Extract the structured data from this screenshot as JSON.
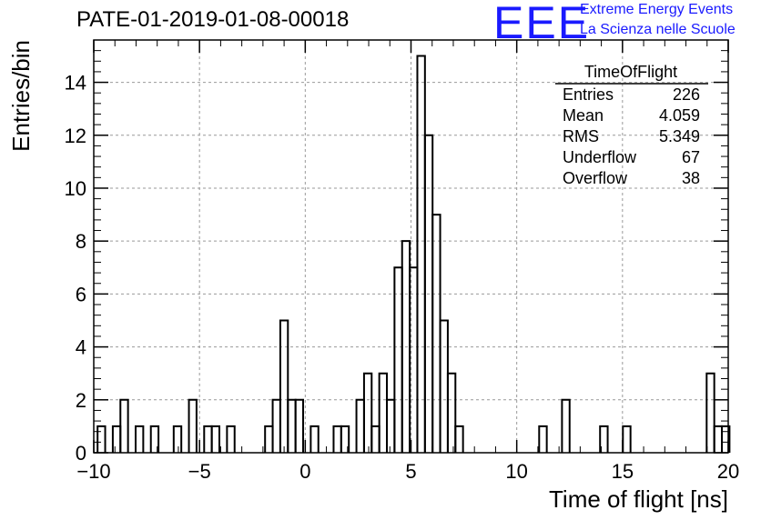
{
  "header": {
    "title": "PATE-01-2019-01-08-00018",
    "logo_text": "EEE",
    "logo_line1": "Extreme Energy Events",
    "logo_line2": "La Scienza nelle Scuole",
    "logo_color": "#1a1aff"
  },
  "stats_box": {
    "title": "TimeOfFlight",
    "rows": [
      {
        "label": "Entries",
        "value": "226"
      },
      {
        "label": "Mean",
        "value": "4.059"
      },
      {
        "label": "RMS",
        "value": "5.349"
      },
      {
        "label": "Underflow",
        "value": "67"
      },
      {
        "label": "Overflow",
        "value": "38"
      }
    ]
  },
  "chart_data": {
    "type": "bar",
    "histogram": true,
    "xlabel": "Time of flight [ns]",
    "ylabel": "Entries/bin",
    "xlim": [
      -10,
      20
    ],
    "ylim": [
      0,
      15.6
    ],
    "grid": true,
    "bin_width": 0.36,
    "x_ticks": [
      -10,
      -5,
      0,
      5,
      10,
      15,
      20
    ],
    "y_ticks": [
      0,
      2,
      4,
      6,
      8,
      10,
      12,
      14
    ],
    "bins": [
      {
        "x": -9.64,
        "y": 1
      },
      {
        "x": -9.28,
        "y": 0
      },
      {
        "x": -8.92,
        "y": 1
      },
      {
        "x": -8.56,
        "y": 2
      },
      {
        "x": -8.2,
        "y": 0
      },
      {
        "x": -7.84,
        "y": 1
      },
      {
        "x": -7.48,
        "y": 0
      },
      {
        "x": -7.12,
        "y": 1
      },
      {
        "x": -6.76,
        "y": 0
      },
      {
        "x": -6.4,
        "y": 0
      },
      {
        "x": -6.04,
        "y": 1
      },
      {
        "x": -5.68,
        "y": 0
      },
      {
        "x": -5.32,
        "y": 2
      },
      {
        "x": -4.96,
        "y": 0
      },
      {
        "x": -4.6,
        "y": 1
      },
      {
        "x": -4.24,
        "y": 1
      },
      {
        "x": -3.88,
        "y": 0
      },
      {
        "x": -3.52,
        "y": 1
      },
      {
        "x": -3.16,
        "y": 0
      },
      {
        "x": -2.8,
        "y": 0
      },
      {
        "x": -2.44,
        "y": 0
      },
      {
        "x": -2.08,
        "y": 0
      },
      {
        "x": -1.72,
        "y": 1
      },
      {
        "x": -1.36,
        "y": 2
      },
      {
        "x": -1.0,
        "y": 5
      },
      {
        "x": -0.64,
        "y": 2
      },
      {
        "x": -0.28,
        "y": 2
      },
      {
        "x": 0.08,
        "y": 0
      },
      {
        "x": 0.44,
        "y": 1
      },
      {
        "x": 0.8,
        "y": 0
      },
      {
        "x": 1.16,
        "y": 0
      },
      {
        "x": 1.52,
        "y": 1
      },
      {
        "x": 1.88,
        "y": 1
      },
      {
        "x": 2.24,
        "y": 0
      },
      {
        "x": 2.6,
        "y": 2
      },
      {
        "x": 2.96,
        "y": 3
      },
      {
        "x": 3.32,
        "y": 1
      },
      {
        "x": 3.68,
        "y": 3
      },
      {
        "x": 4.04,
        "y": 2
      },
      {
        "x": 4.4,
        "y": 7
      },
      {
        "x": 4.76,
        "y": 8
      },
      {
        "x": 5.12,
        "y": 7
      },
      {
        "x": 5.48,
        "y": 15
      },
      {
        "x": 5.84,
        "y": 12
      },
      {
        "x": 6.2,
        "y": 9
      },
      {
        "x": 6.56,
        "y": 5
      },
      {
        "x": 6.92,
        "y": 3
      },
      {
        "x": 7.28,
        "y": 1
      },
      {
        "x": 11.24,
        "y": 1
      },
      {
        "x": 12.32,
        "y": 2
      },
      {
        "x": 14.12,
        "y": 1
      },
      {
        "x": 15.2,
        "y": 1
      },
      {
        "x": 19.16,
        "y": 3
      },
      {
        "x": 19.52,
        "y": 1
      },
      {
        "x": 19.88,
        "y": 1
      }
    ]
  }
}
